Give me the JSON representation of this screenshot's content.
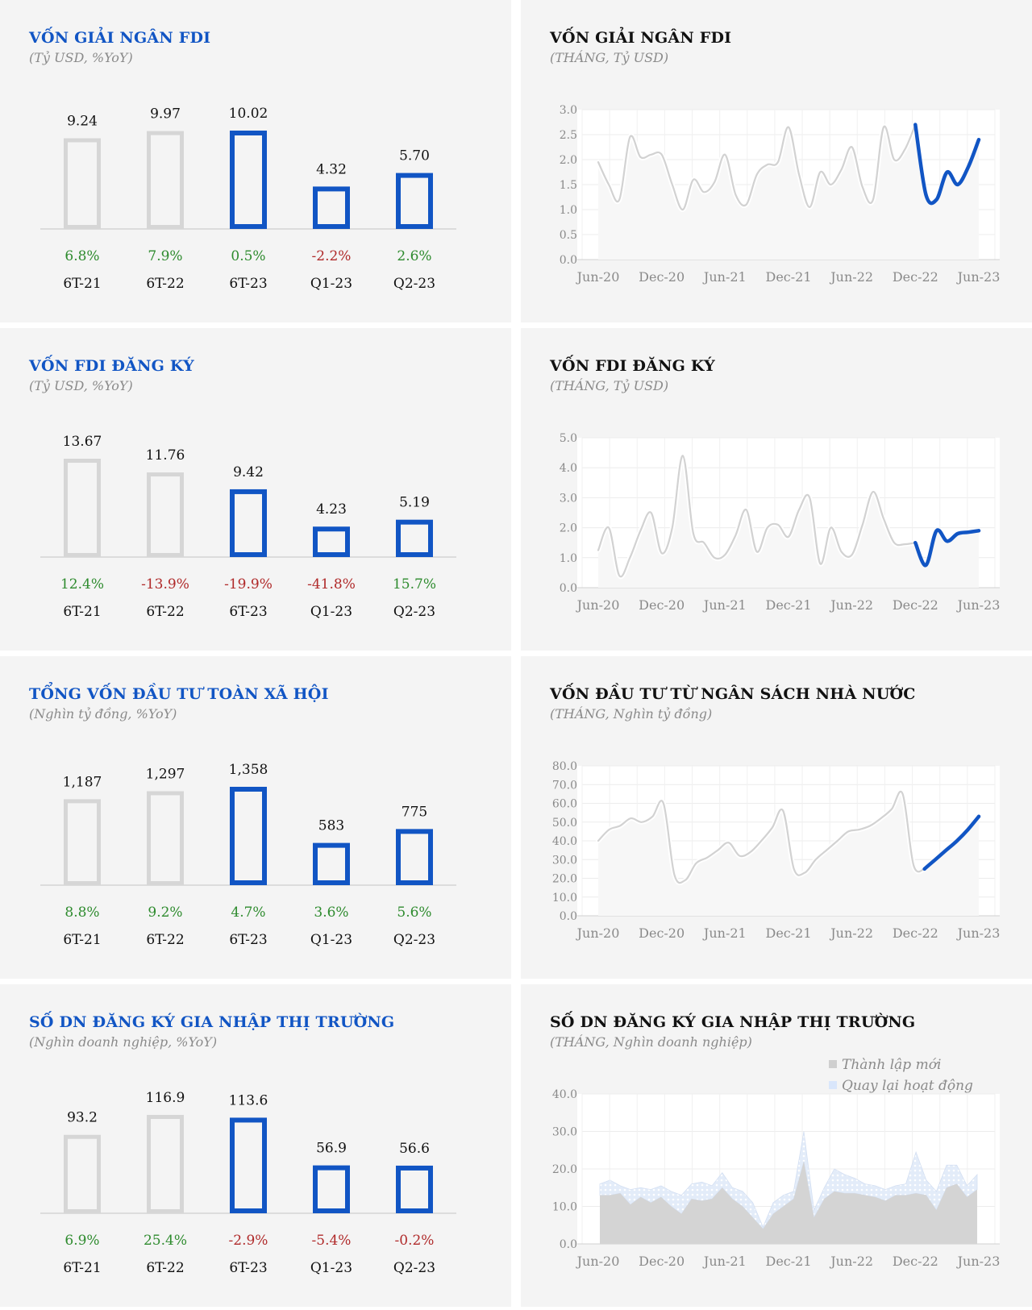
{
  "colors": {
    "accent": "#1155c4",
    "past": "#d6d6d6",
    "positive": "#2e8b2e",
    "negative": "#b02a2a",
    "line_past": "#d2d2d2",
    "line_current": "#1155c4"
  },
  "left_panels": [
    {
      "title": "VỐN GIẢI NGÂN FDI",
      "subtitle": "(Tỷ USD, %YoY)",
      "chart_data": {
        "type": "bar",
        "categories": [
          "6T-21",
          "6T-22",
          "6T-23",
          "Q1-23",
          "Q2-23"
        ],
        "values": [
          9.24,
          9.97,
          10.02,
          4.32,
          5.7
        ],
        "value_labels": [
          "9.24",
          "9.97",
          "10.02",
          "4.32",
          "5.70"
        ],
        "yoy": [
          "6.8%",
          "7.9%",
          "0.5%",
          "-2.2%",
          "2.6%"
        ],
        "highlight": [
          false,
          false,
          true,
          true,
          true
        ]
      }
    },
    {
      "title": "VỐN FDI ĐĂNG KÝ",
      "subtitle": "(Tỷ USD, %YoY)",
      "chart_data": {
        "type": "bar",
        "categories": [
          "6T-21",
          "6T-22",
          "6T-23",
          "Q1-23",
          "Q2-23"
        ],
        "values": [
          13.67,
          11.76,
          9.42,
          4.23,
          5.19
        ],
        "value_labels": [
          "13.67",
          "11.76",
          "9.42",
          "4.23",
          "5.19"
        ],
        "yoy": [
          "12.4%",
          "-13.9%",
          "-19.9%",
          "-41.8%",
          "15.7%"
        ],
        "highlight": [
          false,
          false,
          true,
          true,
          true
        ]
      }
    },
    {
      "title": "TỔNG VỐN ĐẦU TƯ TOÀN XÃ HỘI",
      "subtitle": "(Nghìn tỷ đồng, %YoY)",
      "chart_data": {
        "type": "bar",
        "categories": [
          "6T-21",
          "6T-22",
          "6T-23",
          "Q1-23",
          "Q2-23"
        ],
        "values": [
          1187,
          1297,
          1358,
          583,
          775
        ],
        "value_labels": [
          "1,187",
          "1,297",
          "1,358",
          "583",
          "775"
        ],
        "yoy": [
          "8.8%",
          "9.2%",
          "4.7%",
          "3.6%",
          "5.6%"
        ],
        "highlight": [
          false,
          false,
          true,
          true,
          true
        ]
      }
    },
    {
      "title": "SỐ DN ĐĂNG KÝ GIA NHẬP THỊ TRƯỜNG",
      "subtitle": "(Nghìn doanh nghiệp, %YoY)",
      "chart_data": {
        "type": "bar",
        "categories": [
          "6T-21",
          "6T-22",
          "6T-23",
          "Q1-23",
          "Q2-23"
        ],
        "values": [
          93.2,
          116.9,
          113.6,
          56.9,
          56.6
        ],
        "value_labels": [
          "93.2",
          "116.9",
          "113.6",
          "56.9",
          "56.6"
        ],
        "yoy": [
          "6.9%",
          "25.4%",
          "-2.9%",
          "-5.4%",
          "-0.2%"
        ],
        "highlight": [
          false,
          false,
          true,
          true,
          true
        ]
      }
    }
  ],
  "right_panels": [
    {
      "title": "VỐN GIẢI NGÂN FDI",
      "subtitle": "(THÁNG, Tỷ USD)",
      "chart_data": {
        "type": "line",
        "ylim": [
          0,
          3
        ],
        "yticks": [
          "0.0",
          "0.5",
          "1.0",
          "1.5",
          "2.0",
          "2.5",
          "3.0"
        ],
        "xticks": [
          "Jun-20",
          "Dec-20",
          "Jun-21",
          "Dec-21",
          "Jun-22",
          "Dec-22",
          "Jun-23"
        ],
        "highlight_from": 30,
        "values": [
          1.95,
          1.5,
          1.2,
          2.45,
          2.05,
          2.1,
          2.1,
          1.5,
          1.0,
          1.6,
          1.35,
          1.55,
          2.1,
          1.3,
          1.1,
          1.7,
          1.9,
          1.95,
          2.65,
          1.7,
          1.05,
          1.75,
          1.5,
          1.8,
          2.25,
          1.45,
          1.2,
          2.65,
          2.0,
          2.2,
          2.7,
          1.3,
          1.2,
          1.75,
          1.5,
          1.85,
          2.4
        ]
      }
    },
    {
      "title": "VỐN FDI ĐĂNG KÝ",
      "subtitle": "(THÁNG, Tỷ USD)",
      "chart_data": {
        "type": "line",
        "ylim": [
          0,
          5
        ],
        "yticks": [
          "0.0",
          "1.0",
          "2.0",
          "3.0",
          "4.0",
          "5.0"
        ],
        "xticks": [
          "Jun-20",
          "Dec-20",
          "Jun-21",
          "Dec-21",
          "Jun-22",
          "Dec-22",
          "Jun-23"
        ],
        "highlight_from": 30,
        "values": [
          1.25,
          2.0,
          0.4,
          1.0,
          1.9,
          2.5,
          1.15,
          2.0,
          4.4,
          1.8,
          1.5,
          1.0,
          1.1,
          1.75,
          2.6,
          1.2,
          2.0,
          2.1,
          1.7,
          2.6,
          3.0,
          0.8,
          2.0,
          1.2,
          1.1,
          2.1,
          3.2,
          2.3,
          1.5,
          1.45,
          1.5,
          0.75,
          1.9,
          1.55,
          1.8,
          1.85,
          1.9
        ]
      }
    },
    {
      "title": "VỐN ĐẦU TƯ TỪ NGÂN SÁCH NHÀ NƯỚC",
      "subtitle": "(THÁNG, Nghìn tỷ đồng)",
      "chart_data": {
        "type": "line",
        "ylim": [
          0,
          80
        ],
        "yticks": [
          "0.0",
          "10.0",
          "20.0",
          "30.0",
          "40.0",
          "50.0",
          "60.0",
          "70.0",
          "80.0"
        ],
        "xticks": [
          "Jun-20",
          "Dec-20",
          "Jun-21",
          "Dec-21",
          "Jun-22",
          "Dec-22",
          "Jun-23"
        ],
        "highlight_from": 30,
        "values": [
          40,
          46,
          48,
          52,
          50,
          53,
          60,
          22,
          19,
          28,
          31,
          35,
          39,
          32,
          34,
          40,
          47,
          56,
          25,
          23,
          30,
          35,
          40,
          45,
          46,
          48,
          52,
          57,
          65,
          27,
          25,
          30,
          35,
          40,
          46,
          53
        ]
      }
    },
    {
      "title": "SỐ DN ĐĂNG KÝ GIA NHẬP THỊ TRƯỜNG",
      "subtitle": "(THÁNG, Nghìn doanh nghiệp)",
      "legend": [
        "Thành lập mới",
        "Quay lại hoạt động"
      ],
      "chart_data": {
        "type": "area",
        "ylim": [
          0,
          40
        ],
        "yticks": [
          "0.0",
          "10.0",
          "20.0",
          "30.0",
          "40.0"
        ],
        "xticks": [
          "Jun-20",
          "Dec-20",
          "Jun-21",
          "Dec-21",
          "Jun-22",
          "Dec-22",
          "Jun-23"
        ],
        "series": [
          {
            "name": "Thành lập mới",
            "values": [
              13,
              13,
              13.5,
              10.5,
              12.5,
              11,
              12.5,
              10,
              8,
              12,
              11.5,
              12,
              15,
              12,
              10,
              7,
              4,
              8,
              10,
              12,
              22,
              7,
              12,
              14,
              13.5,
              13.5,
              13,
              12.5,
              11.5,
              13,
              13,
              13.5,
              13,
              9,
              15,
              16,
              12.5,
              14.5
            ]
          },
          {
            "name": "Quay lại hoạt động",
            "values": [
              3,
              4,
              2,
              4,
              2.5,
              3.5,
              3,
              4,
              5,
              4,
              5,
              3.5,
              4,
              3,
              4,
              4,
              0.5,
              3,
              3,
              2,
              8,
              2,
              3,
              6,
              5,
              4,
              3,
              3,
              3,
              2.5,
              3,
              11,
              4,
              5,
              6,
              5,
              3,
              4
            ]
          }
        ]
      }
    }
  ]
}
